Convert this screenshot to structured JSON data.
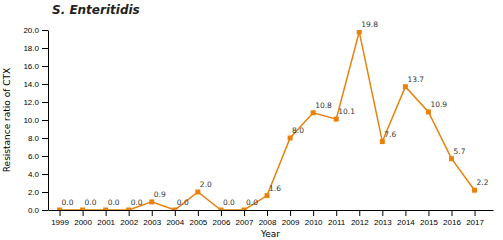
{
  "chart_data": {
    "type": "line",
    "title": "S. Enteritidis",
    "xlabel": "Year",
    "ylabel": "Resistance ratio of CTX",
    "x": [
      1999,
      2000,
      2001,
      2002,
      2003,
      2004,
      2005,
      2006,
      2007,
      2008,
      2009,
      2010,
      2011,
      2012,
      2013,
      2014,
      2015,
      2016,
      2017
    ],
    "values": [
      0.0,
      0.0,
      0.0,
      0.0,
      0.9,
      0.0,
      2.0,
      0.0,
      0.0,
      1.6,
      8.0,
      10.8,
      10.1,
      19.8,
      7.6,
      13.7,
      10.9,
      5.7,
      2.2
    ],
    "value_labels": [
      "0.0",
      "0.0",
      "0.0",
      "0.0",
      "0.9",
      "0.0",
      "2.0",
      "0.0",
      "0.0",
      "1.6",
      "8.0",
      "10.8",
      "10.1",
      "19.8",
      "7.6",
      "13.7",
      "10.9",
      "5.7",
      "2.2"
    ],
    "data_labels": true,
    "color": "#E8820C",
    "marker": "square",
    "xlim": [
      1998.5,
      2017.8
    ],
    "xticks": [
      1999,
      2000,
      2001,
      2002,
      2003,
      2004,
      2005,
      2006,
      2007,
      2008,
      2009,
      2010,
      2011,
      2012,
      2013,
      2014,
      2015,
      2016,
      2017
    ],
    "ylim": [
      0.0,
      20.0
    ],
    "yticks": [
      {
        "value": 0.0,
        "label": "0.0"
      },
      {
        "value": 2.0,
        "label": "2.0"
      },
      {
        "value": 4.0,
        "label": "4.0"
      },
      {
        "value": 6.0,
        "label": "6.0"
      },
      {
        "value": 8.0,
        "label": "8.0"
      },
      {
        "value": 10.0,
        "label": "10.0"
      },
      {
        "value": 12.0,
        "label": "12.0"
      },
      {
        "value": 14.0,
        "label": "14.0"
      },
      {
        "value": 16.0,
        "label": "16.0"
      },
      {
        "value": 18.0,
        "label": "18.0"
      },
      {
        "value": 20.0,
        "label": "20.0"
      }
    ],
    "grid": false
  }
}
